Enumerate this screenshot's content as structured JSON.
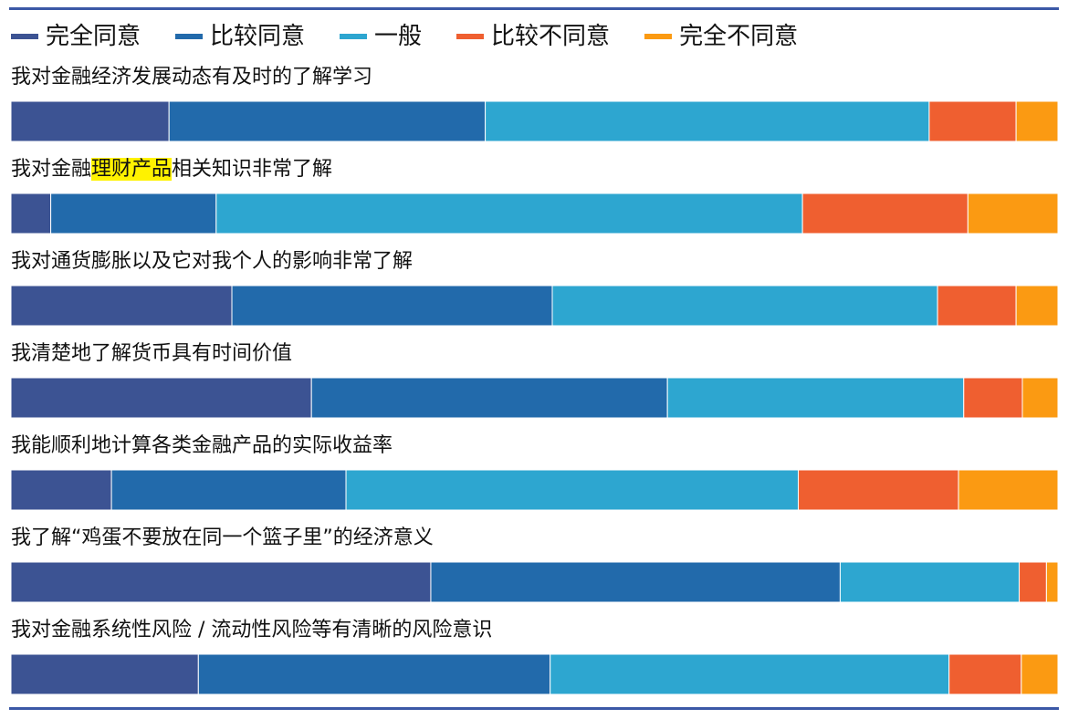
{
  "chart_data": {
    "type": "bar",
    "orientation": "horizontal",
    "stacked": "percent",
    "legend_position": "top",
    "grid": false,
    "xlim": [
      0,
      100
    ],
    "legend": [
      {
        "label": "完全同意",
        "color": "#3c5393"
      },
      {
        "label": "比较同意",
        "color": "#226aab"
      },
      {
        "label": "一般",
        "color": "#2da6d0"
      },
      {
        "label": "比较不同意",
        "color": "#ef5f30"
      },
      {
        "label": "完全不同意",
        "color": "#fb9a12"
      }
    ],
    "categories": [
      "我对金融经济发展动态有及时的了解学习",
      "我对金融理财产品相关知识非常了解",
      "我对通货膨胀以及它对我个人的影响非常了解",
      "我清楚地了解货币具有时间价值",
      "我能顺利地计算各类金融产品的实际收益率",
      "我了解“鸡蛋不要放在同一个篮子里”的经济意义",
      "我对金融系统性风险 / 流动性风险等有清晰的风险意识"
    ],
    "highlight": {
      "category_index": 1,
      "text": "理财产品",
      "color": "#fff200"
    },
    "series": [
      {
        "name": "完全同意",
        "values": [
          15.1,
          3.8,
          21.1,
          28.7,
          9.6,
          40.1,
          17.9
        ]
      },
      {
        "name": "比较同意",
        "values": [
          30.2,
          15.8,
          30.6,
          34.0,
          22.4,
          39.1,
          33.6
        ]
      },
      {
        "name": "一般",
        "values": [
          42.4,
          56.0,
          36.8,
          28.3,
          43.2,
          17.1,
          38.1
        ]
      },
      {
        "name": "比较不同意",
        "values": [
          8.3,
          15.8,
          7.5,
          5.6,
          15.3,
          2.6,
          6.9
        ]
      },
      {
        "name": "完全不同意",
        "values": [
          4.0,
          8.6,
          4.0,
          3.4,
          9.5,
          1.1,
          3.5
        ]
      }
    ]
  }
}
